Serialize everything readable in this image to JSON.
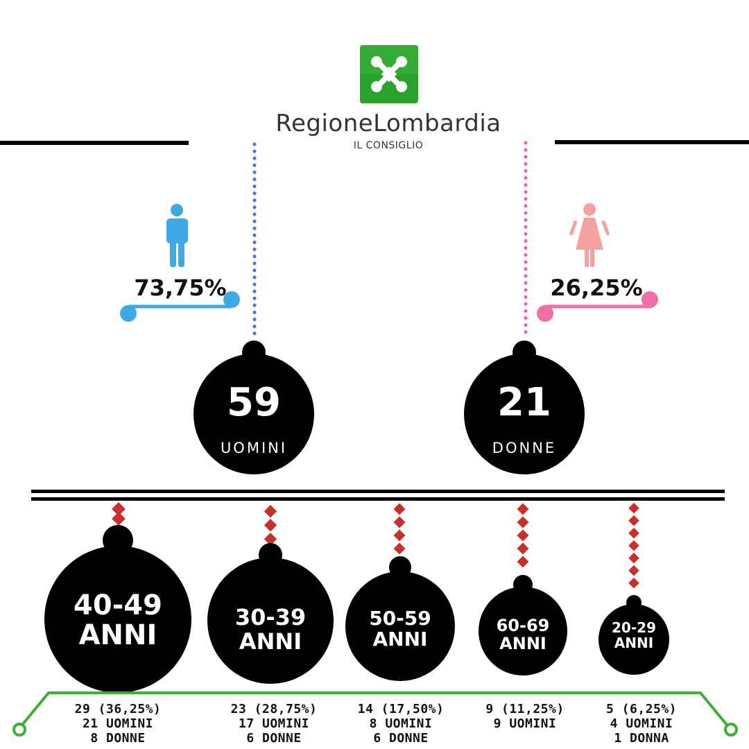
{
  "colors": {
    "brand_green": "#2aa12a",
    "men_blue": "#3fa9e8",
    "women_pink": "#f06ea9",
    "dot_blue": "#4f6fe8",
    "dot_pink": "#f25fb0",
    "chain_red": "#c8302a",
    "line_green": "#3cb034",
    "ball_black": "#000000"
  },
  "icons": {
    "logo": "regione-lombardia-logo-icon",
    "man": "man-figure-icon",
    "woman": "woman-figure-icon"
  },
  "logo": {
    "name": "RegioneLombardia",
    "subtitle": "IL CONSIGLIO"
  },
  "gender": {
    "men": {
      "percent": "73,75%",
      "count": "59",
      "label": "UOMINI"
    },
    "women": {
      "percent": "26,25%",
      "count": "21",
      "label": "DONNE"
    }
  },
  "age_groups": [
    {
      "range": "40-49",
      "unit": "ANNI",
      "lines": [
        "29 (36,25%)",
        "21 UOMINI",
        "8 DONNE"
      ]
    },
    {
      "range": "30-39",
      "unit": "ANNI",
      "lines": [
        "23 (28,75%)",
        "17 UOMINI",
        "6 DONNE"
      ]
    },
    {
      "range": "50-59",
      "unit": "ANNI",
      "lines": [
        "14 (17,50%)",
        "8 UOMINI",
        "6 DONNE"
      ]
    },
    {
      "range": "60-69",
      "unit": "ANNI",
      "lines": [
        "9 (11,25%)",
        "9 UOMINI"
      ]
    },
    {
      "range": "20-29",
      "unit": "ANNI",
      "lines": [
        "5 (6,25%)",
        "4 UOMINI",
        "1 DONNA"
      ]
    }
  ]
}
